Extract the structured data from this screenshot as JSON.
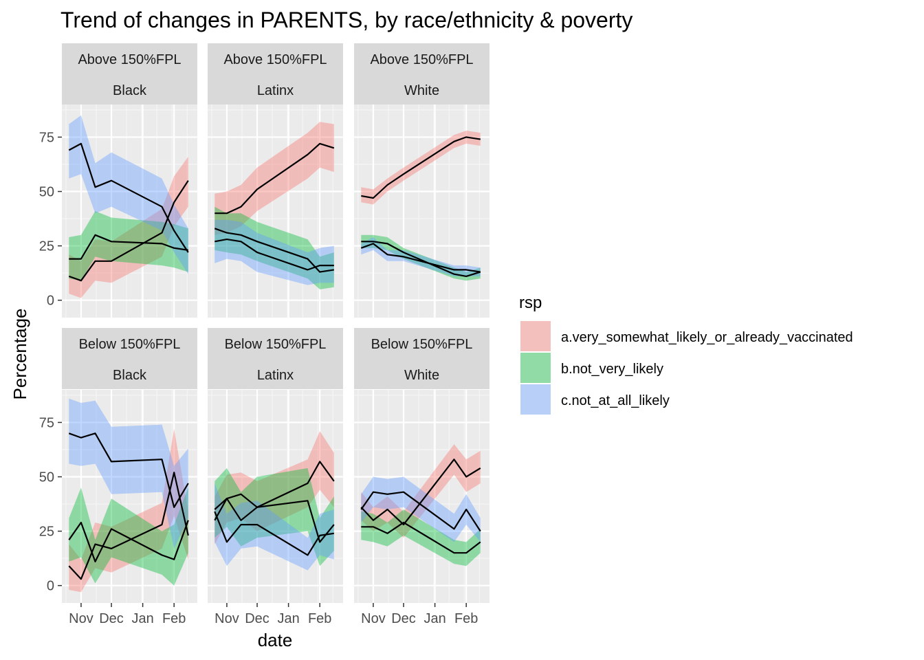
{
  "chart_data": {
    "type": "line",
    "title": "Trend of changes in PARENTS, by race/ethnicity & poverty",
    "xlabel": "date",
    "ylabel": "Percentage",
    "x_ticks": [
      {
        "label": "Nov",
        "date": "2020-11-01"
      },
      {
        "label": "Dec",
        "date": "2020-12-01"
      },
      {
        "label": "Jan",
        "date": "2021-01-01"
      },
      {
        "label": "Feb",
        "date": "2021-02-01"
      }
    ],
    "x_range": [
      "2020-10-13",
      "2021-02-24"
    ],
    "y_ticks": [
      0,
      25,
      50,
      75
    ],
    "ylim": [
      -8,
      90
    ],
    "grid": true,
    "legend": {
      "title": "rsp",
      "placement": "right",
      "entries": [
        {
          "name": "a.very_somewhat_likely_or_already_vaccinated",
          "color": "#F8766D"
        },
        {
          "name": "b.not_very_likely",
          "color": "#00BA38"
        },
        {
          "name": "c.not_at_all_likely",
          "color": "#619CFF"
        }
      ]
    },
    "panels": [
      {
        "strip": [
          "Above 150%FPL",
          "Black"
        ],
        "dates": [
          "2020-10-20",
          "2020-11-01",
          "2020-11-15",
          "2020-12-01",
          "2021-01-20",
          "2021-02-01",
          "2021-02-15"
        ],
        "series": [
          {
            "name": "a.very_somewhat_likely_or_already_vaccinated",
            "y": [
              11,
              9,
              18,
              18,
              31,
              45,
              55
            ],
            "lower": [
              3,
              1,
              9,
              8,
              20,
              34,
              43
            ],
            "upper": [
              21,
              18,
              28,
              27,
              42,
              57,
              66
            ]
          },
          {
            "name": "b.not_very_likely",
            "y": [
              19,
              19,
              30,
              27,
              26,
              24,
              23
            ],
            "lower": [
              10,
              9,
              20,
              18,
              16,
              15,
              13
            ],
            "upper": [
              29,
              30,
              41,
              38,
              36,
              35,
              33
            ]
          },
          {
            "name": "c.not_at_all_likely",
            "y": [
              69,
              72,
              52,
              55,
              43,
              32,
              22
            ],
            "lower": [
              56,
              58,
              40,
              43,
              32,
              22,
              12
            ],
            "upper": [
              81,
              85,
              63,
              68,
              56,
              44,
              33
            ]
          }
        ]
      },
      {
        "strip": [
          "Above 150%FPL",
          "Latinx"
        ],
        "dates": [
          "2020-10-20",
          "2020-11-01",
          "2020-11-15",
          "2020-12-01",
          "2021-01-20",
          "2021-02-01",
          "2021-02-15"
        ],
        "series": [
          {
            "name": "a.very_somewhat_likely_or_already_vaccinated",
            "y": [
              40,
              40,
              43,
              51,
              67,
              72,
              70
            ],
            "lower": [
              30,
              31,
              34,
              41,
              56,
              61,
              59
            ],
            "upper": [
              49,
              50,
              53,
              61,
              77,
              82,
              81
            ]
          },
          {
            "name": "b.not_very_likely",
            "y": [
              33,
              31,
              30,
              27,
              19,
              13,
              14
            ],
            "lower": [
              23,
              22,
              21,
              18,
              10,
              5,
              6
            ],
            "upper": [
              43,
              40,
              40,
              36,
              28,
              20,
              22
            ]
          },
          {
            "name": "c.not_at_all_likely",
            "y": [
              27,
              28,
              27,
              22,
              14,
              16,
              16
            ],
            "lower": [
              17,
              19,
              18,
              13,
              7,
              8,
              8
            ],
            "upper": [
              37,
              37,
              36,
              31,
              22,
              24,
              25
            ]
          }
        ]
      },
      {
        "strip": [
          "Above 150%FPL",
          "White"
        ],
        "dates": [
          "2020-10-20",
          "2020-11-01",
          "2020-11-15",
          "2020-12-01",
          "2021-01-20",
          "2021-02-01",
          "2021-02-15"
        ],
        "series": [
          {
            "name": "a.very_somewhat_likely_or_already_vaccinated",
            "y": [
              48,
              47,
              53,
              58,
              73,
              75,
              74
            ],
            "lower": [
              45,
              44,
              50,
              55,
              70,
              72,
              71
            ],
            "upper": [
              52,
              51,
              56,
              61,
              76,
              78,
              77
            ]
          },
          {
            "name": "b.not_very_likely",
            "y": [
              27,
              27,
              26,
              22,
              12,
              11,
              13
            ],
            "lower": [
              24,
              24,
              23,
              19,
              10,
              9,
              10
            ],
            "upper": [
              30,
              30,
              29,
              24,
              15,
              13,
              15
            ]
          },
          {
            "name": "c.not_at_all_likely",
            "y": [
              24,
              26,
              21,
              20,
              14,
              14,
              13
            ],
            "lower": [
              21,
              23,
              18,
              18,
              11,
              11,
              11
            ],
            "upper": [
              26,
              29,
              23,
              23,
              16,
              16,
              15
            ]
          }
        ]
      },
      {
        "strip": [
          "Below 150%FPL",
          "Black"
        ],
        "dates": [
          "2020-10-20",
          "2020-11-01",
          "2020-11-15",
          "2020-12-01",
          "2021-01-20",
          "2021-02-01",
          "2021-02-15"
        ],
        "series": [
          {
            "name": "a.very_somewhat_likely_or_already_vaccinated",
            "y": [
              9,
              3,
              19,
              17,
              28,
              52,
              23
            ],
            "lower": [
              -2,
              -3,
              8,
              6,
              17,
              32,
              12
            ],
            "upper": [
              19,
              12,
              29,
              27,
              38,
              72,
              34
            ]
          },
          {
            "name": "b.not_very_likely",
            "y": [
              21,
              29,
              11,
              26,
              14,
              12,
              30
            ],
            "lower": [
              11,
              13,
              1,
              13,
              5,
              0,
              15
            ],
            "upper": [
              31,
              45,
              21,
              40,
              25,
              28,
              45
            ]
          },
          {
            "name": "c.not_at_all_likely",
            "y": [
              70,
              68,
              70,
              57,
              58,
              36,
              47
            ],
            "lower": [
              56,
              55,
              56,
              42,
              43,
              17,
              31
            ],
            "upper": [
              86,
              84,
              85,
              73,
              74,
              55,
              63
            ]
          }
        ]
      },
      {
        "strip": [
          "Below 150%FPL",
          "Latinx"
        ],
        "dates": [
          "2020-10-20",
          "2020-11-01",
          "2020-11-15",
          "2020-12-01",
          "2021-01-20",
          "2021-02-01",
          "2021-02-15"
        ],
        "series": [
          {
            "name": "a.very_somewhat_likely_or_already_vaccinated",
            "y": [
              30,
              40,
              42,
              36,
              47,
              57,
              48
            ],
            "lower": [
              19,
              29,
              31,
              25,
              36,
              44,
              36
            ],
            "upper": [
              41,
              51,
              52,
              48,
              58,
              71,
              61
            ]
          },
          {
            "name": "b.not_very_likely",
            "y": [
              35,
              40,
              30,
              36,
              39,
              20,
              28
            ],
            "lower": [
              22,
              27,
              18,
              22,
              25,
              9,
              16
            ],
            "upper": [
              48,
              54,
              43,
              50,
              54,
              31,
              41
            ]
          },
          {
            "name": "c.not_at_all_likely",
            "y": [
              34,
              20,
              28,
              28,
              14,
              23,
              24
            ],
            "lower": [
              20,
              9,
              17,
              18,
              7,
              14,
              12
            ],
            "upper": [
              47,
              33,
              38,
              39,
              22,
              33,
              35
            ]
          }
        ]
      },
      {
        "strip": [
          "Below 150%FPL",
          "White"
        ],
        "dates": [
          "2020-10-20",
          "2020-11-01",
          "2020-11-15",
          "2020-12-01",
          "2021-01-20",
          "2021-02-01",
          "2021-02-15"
        ],
        "series": [
          {
            "name": "a.very_somewhat_likely_or_already_vaccinated",
            "y": [
              36,
              30,
              35,
              28,
              58,
              50,
              54
            ],
            "lower": [
              30,
              25,
              29,
              22,
              51,
              43,
              47
            ],
            "upper": [
              43,
              36,
              41,
              34,
              65,
              58,
              62
            ]
          },
          {
            "name": "b.not_very_likely",
            "y": [
              27,
              27,
              24,
              29,
              15,
              15,
              20
            ],
            "lower": [
              21,
              20,
              18,
              23,
              10,
              9,
              15
            ],
            "upper": [
              34,
              33,
              29,
              35,
              21,
              20,
              26
            ]
          },
          {
            "name": "c.not_at_all_likely",
            "y": [
              35,
              43,
              42,
              43,
              26,
              35,
              25
            ],
            "lower": [
              29,
              36,
              35,
              36,
              20,
              28,
              20
            ],
            "upper": [
              42,
              50,
              49,
              50,
              33,
              42,
              31
            ]
          }
        ]
      }
    ]
  }
}
